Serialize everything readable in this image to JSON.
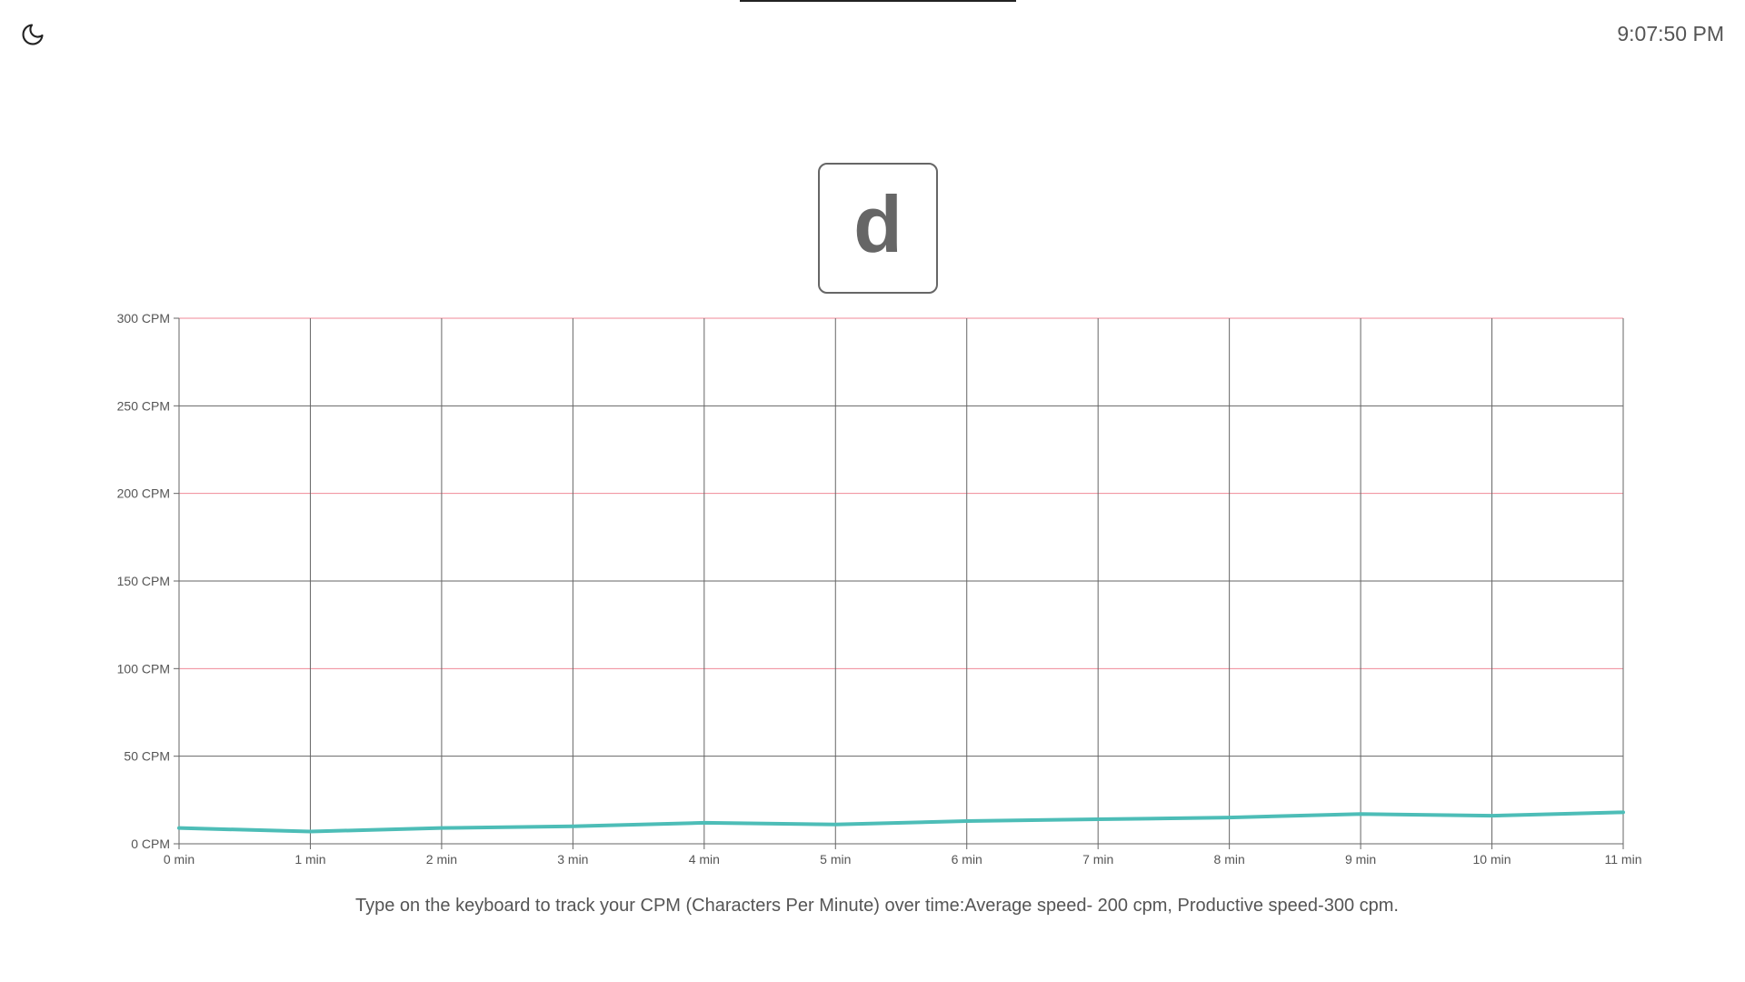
{
  "header": {
    "clock": "9:07:50 PM",
    "theme_icon": "moon-icon"
  },
  "key_display": {
    "letter": "d"
  },
  "caption": "Type on the keyboard to track your CPM (Characters Per Minute) over time:Average speed- 200 cpm, Productive speed-300 cpm.",
  "colors": {
    "line": "#4dbdb7",
    "grid": "#666666",
    "highlight_grid": "#f08a97",
    "text": "#555555"
  },
  "chart_data": {
    "type": "line",
    "title": "",
    "xlabel": "",
    "ylabel": "",
    "x": [
      0,
      1,
      2,
      3,
      4,
      5,
      6,
      7,
      8,
      9,
      10,
      11
    ],
    "x_tick_labels": [
      "0 min",
      "1 min",
      "2 min",
      "3 min",
      "4 min",
      "5 min",
      "6 min",
      "7 min",
      "8 min",
      "9 min",
      "10 min",
      "11 min"
    ],
    "y_ticks": [
      0,
      50,
      100,
      150,
      200,
      250,
      300
    ],
    "y_tick_labels": [
      "0 CPM",
      "50 CPM",
      "100 CPM",
      "150 CPM",
      "200 CPM",
      "250 CPM",
      "300 CPM"
    ],
    "highlighted_gridlines": [
      100,
      200,
      300
    ],
    "xlim": [
      0,
      11
    ],
    "ylim": [
      0,
      300
    ],
    "grid": true,
    "series": [
      {
        "values": [
          9,
          7,
          9,
          10,
          12,
          11,
          13,
          14,
          15,
          17,
          16,
          18
        ]
      }
    ]
  }
}
